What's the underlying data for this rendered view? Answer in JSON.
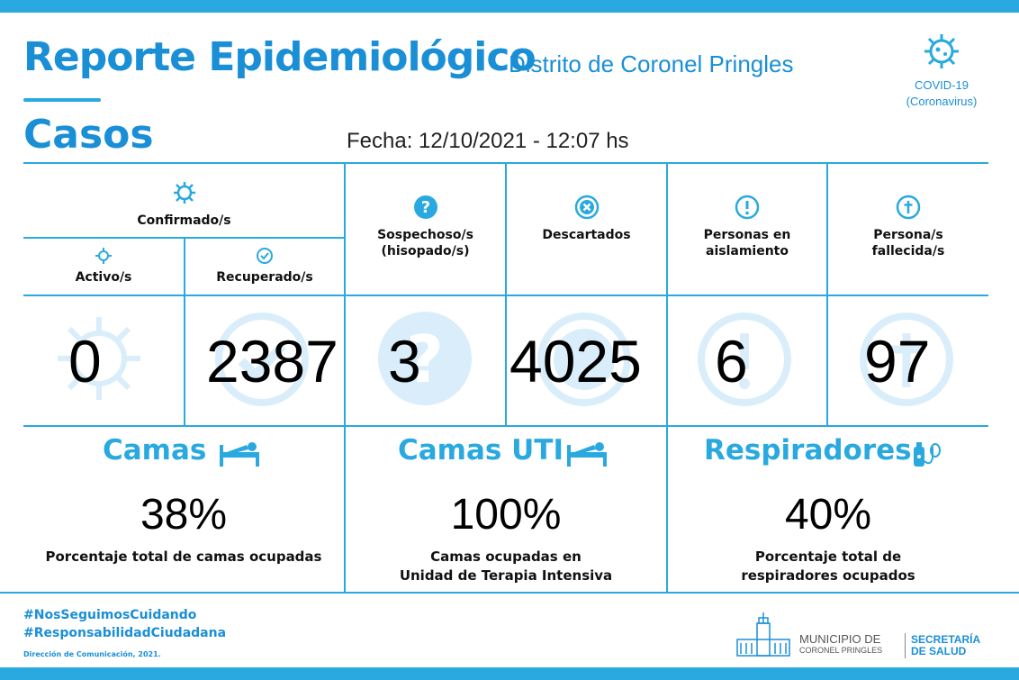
{
  "header": {
    "title": "Reporte Epidemiológico",
    "subtitle": "Distrito de Coronel Pringles",
    "section": "Casos",
    "fecha": "Fecha: 12/10/2021 - 12:07 hs",
    "covid_line1": "COVID-19",
    "covid_line2": "(Coronavirus)"
  },
  "cases": {
    "confirmados_label": "Confirmado/s",
    "activos_label": "Activo/s",
    "recuperados_label": "Recuperado/s",
    "sospechosos_label_1": "Sospechoso/s",
    "sospechosos_label_2": "(hisopado/s)",
    "descartados_label": "Descartados",
    "aislamiento_label_1": "Personas en",
    "aislamiento_label_2": "aislamiento",
    "fallecidos_label_1": "Persona/s",
    "fallecidos_label_2": "fallecida/s",
    "activos": "0",
    "recuperados": "2387",
    "sospechosos": "3",
    "descartados": "4025",
    "aislamiento": "6",
    "fallecidos": "97"
  },
  "beds": {
    "camas_title": "Camas",
    "camas_pct": "38%",
    "camas_desc": "Porcentaje total de camas ocupadas",
    "uti_title": "Camas UTI",
    "uti_pct": "100%",
    "uti_desc_1": "Camas ocupadas en",
    "uti_desc_2": "Unidad de Terapia Intensiva",
    "resp_title": "Respiradores",
    "resp_pct": "40%",
    "resp_desc_1": "Porcentaje total de",
    "resp_desc_2": "respiradores ocupados"
  },
  "footer": {
    "hashtag1": "#NosSeguimosCuidando",
    "hashtag2": "#ResponsabilidadCiudadana",
    "direccion": "Dirección de Comunicación, 2021.",
    "muni_1": "MUNICIPIO DE",
    "muni_2": "CORONEL PRINGLES",
    "secr_1": "SECRETARÍA",
    "secr_2": "DE SALUD"
  },
  "colors": {
    "accent": "#29a9e0",
    "title_blue": "#1a8fd6",
    "watermark": "#d9eefa"
  },
  "icons": [
    "virus-icon",
    "check-icon",
    "question-icon",
    "x-circle-icon",
    "exclamation-icon",
    "cross-icon",
    "bed-icon",
    "respirator-icon",
    "municipio-building-icon"
  ]
}
